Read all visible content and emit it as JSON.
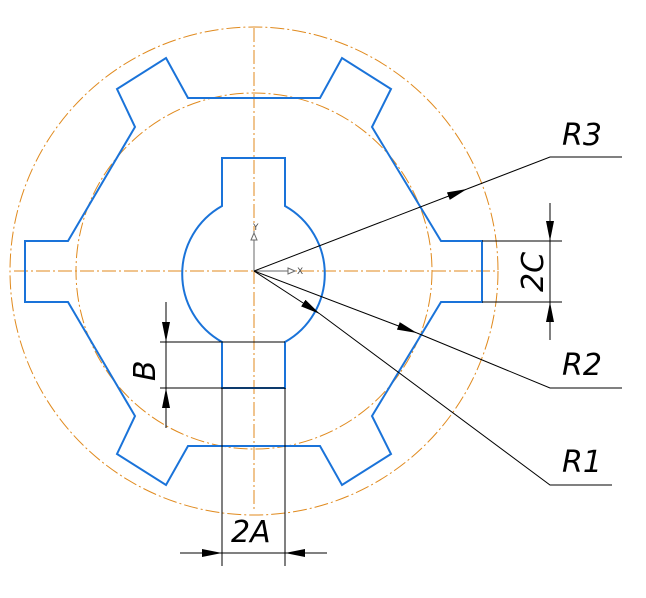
{
  "labels": {
    "r3": "R3",
    "r2": "R2",
    "r1": "R1",
    "two_c": "2C",
    "b": "B",
    "two_a": "2A"
  },
  "axes": {
    "x": "X",
    "y": "Y"
  },
  "colors": {
    "contour": "#1a73d9",
    "centerline": "#e08a1e",
    "dimension": "#000000",
    "background": "#ffffff"
  }
}
